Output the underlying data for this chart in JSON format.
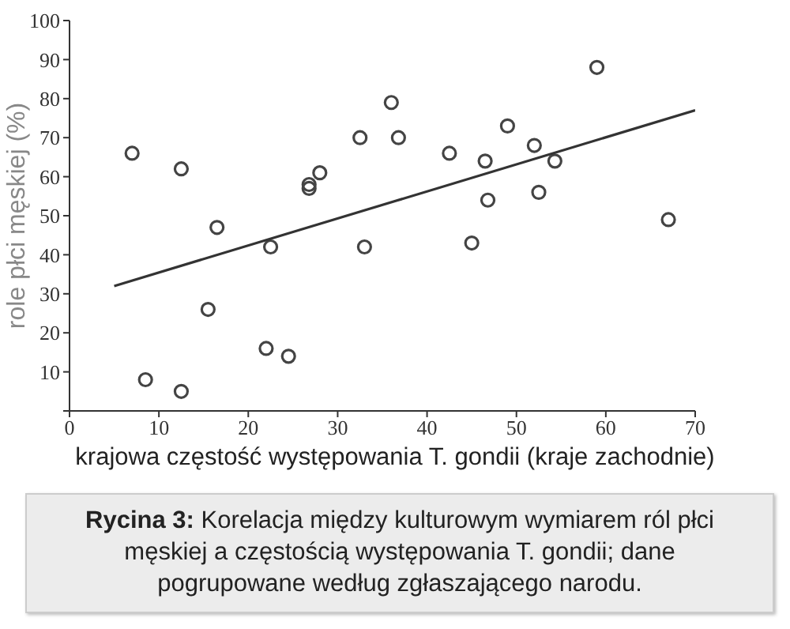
{
  "chart_data": {
    "type": "scatter",
    "xlabel": "krajowa częstość występowania T. gondii (kraje zachodnie)",
    "ylabel": "role płci męskiej (%)",
    "annotations": [
      "Rycina 3: Korelacja między kulturowym wymiarem ról płci męskiej a częstością występowania T. gondii; dane pogrupowane według zgłaszającego narodu."
    ],
    "xlim": [
      0,
      70
    ],
    "xticks": [
      0,
      10,
      20,
      30,
      40,
      50,
      60,
      70
    ],
    "ylim": [
      0,
      100
    ],
    "yticks": [
      {
        "value": 0,
        "label": null
      },
      10,
      20,
      30,
      40,
      50,
      60,
      70,
      80,
      90,
      100
    ],
    "marker": "circle",
    "series": [
      {
        "color": "#444444",
        "x": [
          7,
          12.5,
          16.5,
          15.5,
          8.5,
          12.5,
          22,
          24.5,
          22.5,
          26.8,
          26.8,
          28,
          32.5,
          33,
          36,
          36.8,
          42.5,
          46.5,
          46.8,
          45,
          49,
          52,
          52.5,
          54.3,
          59,
          67
        ],
        "values": [
          66,
          62,
          47,
          26,
          8,
          5,
          16,
          14,
          42,
          58,
          57,
          61,
          70,
          42,
          79,
          70,
          66,
          64,
          54,
          43,
          73,
          68,
          56,
          64,
          88,
          49
        ]
      },
      {
        "type": "line",
        "marker": "none",
        "color": "#333333",
        "x": [
          5,
          70
        ],
        "values": [
          32,
          77
        ]
      }
    ]
  }
}
